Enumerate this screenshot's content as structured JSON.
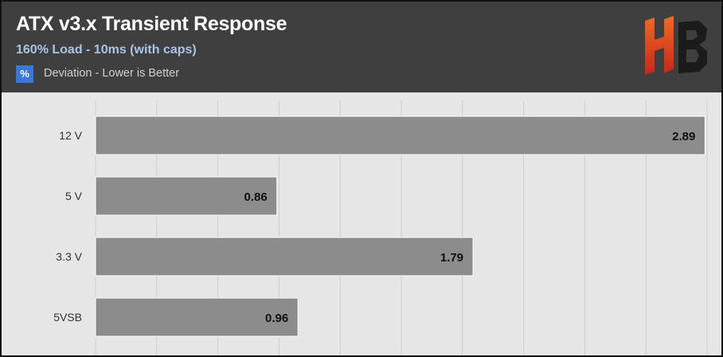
{
  "header": {
    "title": "ATX v3.x Transient Response",
    "subtitle": "160% Load - 10ms (with caps)",
    "legend_symbol": "%",
    "legend_label": "Deviation - Lower is Better",
    "logo_icon": "hb-logo-icon"
  },
  "colors": {
    "header_bg": "#3f3f3f",
    "plot_bg": "#e6e6e6",
    "bar": "#8c8c8c",
    "legend_swatch": "#3a78d8",
    "logo_orange": "#e8541c",
    "logo_red": "#c8261a"
  },
  "chart_data": {
    "type": "bar",
    "orientation": "horizontal",
    "categories": [
      "12 V",
      "5 V",
      "3.3 V",
      "5VSB"
    ],
    "values": [
      2.89,
      0.86,
      1.79,
      0.96
    ],
    "value_labels": [
      "2.89",
      "0.86",
      "1.79",
      "0.96"
    ],
    "xlim": [
      0,
      2.9
    ],
    "grid": true,
    "data_labels": true
  }
}
